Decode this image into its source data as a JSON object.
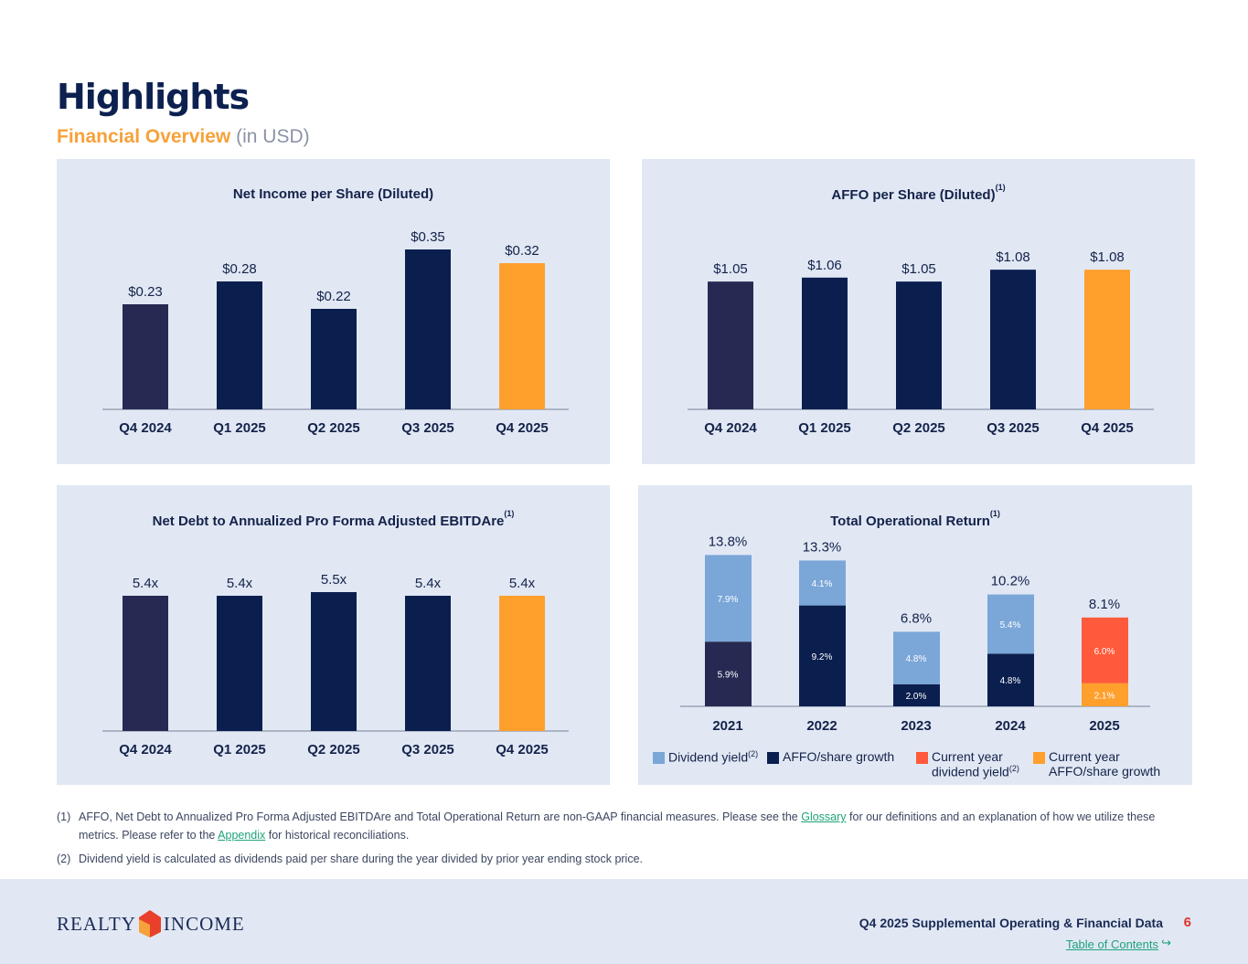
{
  "header": {
    "title": "Highlights",
    "subtitle": "Financial Overview",
    "subtitle_note": "(in USD)"
  },
  "colors": {
    "prior": "#262a52",
    "navy": "#0b1f4f",
    "current": "#ff9f2c",
    "dividend": "#7ba6d8",
    "current_dividend": "#ff5a3b",
    "axis": "#9aa3b5"
  },
  "chart_data": [
    {
      "type": "bar",
      "title": "Net Income per Share (Diluted)",
      "title_note": "",
      "categories": [
        "Q4 2024",
        "Q1 2025",
        "Q2 2025",
        "Q3 2025",
        "Q4 2025"
      ],
      "values": [
        0.23,
        0.28,
        0.22,
        0.35,
        0.32
      ],
      "labels": [
        "$0.23",
        "$0.28",
        "$0.22",
        "$0.35",
        "$0.32"
      ]
    },
    {
      "type": "bar",
      "title": "AFFO per Share (Diluted)",
      "title_note": "(1)",
      "categories": [
        "Q4 2024",
        "Q1 2025",
        "Q2 2025",
        "Q3 2025",
        "Q4 2025"
      ],
      "values": [
        1.05,
        1.06,
        1.05,
        1.08,
        1.08
      ],
      "labels": [
        "$1.05",
        "$1.06",
        "$1.05",
        "$1.08",
        "$1.08"
      ]
    },
    {
      "type": "bar",
      "title": "Net Debt to Annualized Pro Forma Adjusted EBITDAre",
      "title_note": "(1)",
      "categories": [
        "Q4 2024",
        "Q1 2025",
        "Q2 2025",
        "Q3 2025",
        "Q4 2025"
      ],
      "values": [
        5.4,
        5.4,
        5.5,
        5.4,
        5.4
      ],
      "labels": [
        "5.4x",
        "5.4x",
        "5.5x",
        "5.4x",
        "5.4x"
      ]
    },
    {
      "type": "bar",
      "stacked": true,
      "title": "Total Operational Return",
      "title_note": "(1)",
      "categories": [
        "2021",
        "2022",
        "2023",
        "2024",
        "2025"
      ],
      "series": [
        {
          "name": "AFFO/share growth",
          "values": [
            5.9,
            9.2,
            2.0,
            4.8,
            2.1
          ],
          "labels": [
            "5.9%",
            "9.2%",
            "2.0%",
            "4.8%",
            "2.1%"
          ]
        },
        {
          "name": "Dividend yield",
          "values": [
            7.9,
            4.1,
            4.8,
            5.4,
            6.0
          ],
          "labels": [
            "7.9%",
            "4.1%",
            "4.8%",
            "5.4%",
            "6.0%"
          ]
        }
      ],
      "totals": [
        "13.8%",
        "13.3%",
        "6.8%",
        "10.2%",
        "8.1%"
      ],
      "legend": [
        {
          "label": "Dividend yield",
          "note": "(2)"
        },
        {
          "label": "AFFO/share growth",
          "note": ""
        },
        {
          "label": "Current year dividend yield",
          "note": "(2)"
        },
        {
          "label": "Current year AFFO/share growth",
          "note": ""
        }
      ]
    }
  ],
  "notes": {
    "n1_num": "(1)",
    "n1_a": "AFFO, Net Debt to Annualized Pro Forma Adjusted EBITDAre and Total Operational Return are non-GAAP financial measures. Please see the ",
    "n1_link1": "Glossary",
    "n1_b": " for our definitions and an explanation of how we utilize these metrics. Please refer to the ",
    "n1_link2": "Appendix",
    "n1_c": " for historical reconciliations.",
    "n2_num": "(2)",
    "n2": "Dividend yield is calculated as dividends paid per share during the year divided by prior year ending stock price."
  },
  "footer": {
    "logo_left": "REALTY",
    "logo_right": "INCOME",
    "doc_title": "Q4 2025 Supplemental Operating & Financial Data",
    "page": "6",
    "toc": "Table of Contents",
    "toc_icon": "arrow-return-icon"
  }
}
